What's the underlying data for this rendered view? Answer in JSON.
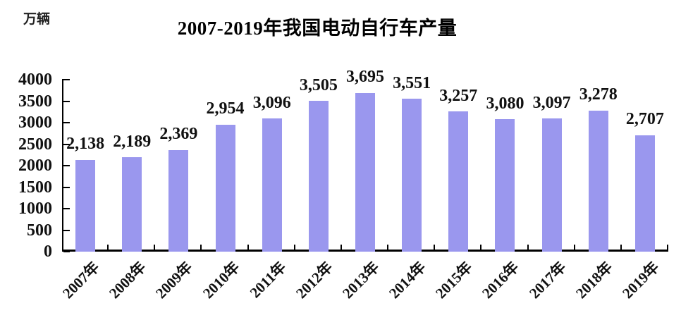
{
  "chart_data": {
    "type": "bar",
    "title": "2007-2019年我国电动自行车产量",
    "ylabel": "万辆",
    "xlabel": "",
    "categories": [
      "2007年",
      "2008年",
      "2009年",
      "2010年",
      "2011年",
      "2012年",
      "2013年",
      "2014年",
      "2015年",
      "2016年",
      "2017年",
      "2018年",
      "2019年"
    ],
    "values": [
      2138,
      2189,
      2369,
      2954,
      3096,
      3505,
      3695,
      3551,
      3257,
      3080,
      3097,
      3278,
      2707
    ],
    "value_labels": [
      "2,138",
      "2,189",
      "2,369",
      "2,954",
      "3,096",
      "3,505",
      "3,695",
      "3,551",
      "3,257",
      "3,080",
      "3,097",
      "3,278",
      "2,707"
    ],
    "ylim": [
      0,
      4000
    ],
    "yticks": [
      0,
      500,
      1000,
      1500,
      2000,
      2500,
      3000,
      3500,
      4000
    ],
    "bar_color": "#9A97EE",
    "axis_color": "#000000",
    "grid": false,
    "legend": "none",
    "data_label_position": "above"
  }
}
